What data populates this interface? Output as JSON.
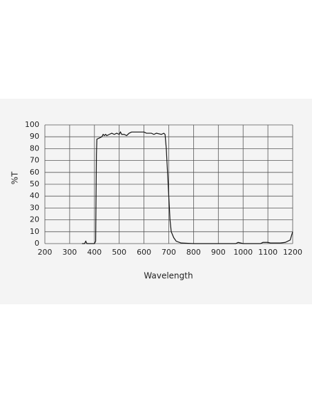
{
  "chart_data": {
    "type": "line",
    "x_label": "Wavelength",
    "y_label": "%T",
    "xlim": [
      200,
      1200
    ],
    "ylim": [
      0,
      100
    ],
    "xticks": [
      200,
      300,
      400,
      500,
      600,
      700,
      800,
      900,
      1000,
      1100,
      1200
    ],
    "yticks": [
      0,
      10,
      20,
      30,
      40,
      50,
      60,
      70,
      80,
      90,
      100
    ],
    "grid": true,
    "series": [
      {
        "color": "#111111",
        "x": [
          350,
          360,
          365,
          370,
          400,
          405,
          408,
          410,
          420,
          430,
          435,
          440,
          445,
          450,
          460,
          470,
          480,
          490,
          500,
          505,
          510,
          520,
          530,
          540,
          550,
          600,
          610,
          630,
          640,
          650,
          670,
          680,
          685,
          690,
          700,
          705,
          710,
          720,
          730,
          750,
          800,
          970,
          980,
          990,
          1000,
          1070,
          1080,
          1100,
          1110,
          1150,
          1170,
          1190,
          1200
        ],
        "values": [
          0,
          0,
          2,
          0,
          0,
          2,
          75,
          88,
          89,
          90,
          92,
          91,
          92,
          91,
          92,
          93,
          92,
          93,
          92,
          94,
          92,
          92,
          91,
          93,
          94,
          94,
          93,
          93,
          92,
          93,
          92,
          93,
          92,
          80,
          40,
          20,
          10,
          5,
          2,
          0.5,
          0,
          0,
          1,
          0.5,
          0,
          0,
          1,
          1,
          0.5,
          0.5,
          1,
          3,
          10
        ]
      }
    ]
  }
}
